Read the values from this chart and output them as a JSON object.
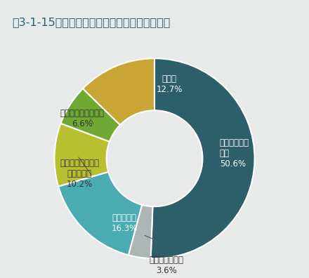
{
  "title": "図3-1-15　環境配慮行動を徹底するための要因",
  "segments": [
    {
      "label_inside": "社内ルールに\nなる\n50.6%",
      "value": 50.6,
      "color": "#2d5f6b",
      "label_outside": null
    },
    {
      "label_inside": null,
      "value": 3.6,
      "color": "#adb5b5",
      "label_outside": "上司からの指示\n3.6%"
    },
    {
      "label_inside": "周囲が実施\n16.3%",
      "value": 16.3,
      "color": "#4aabb0",
      "label_outside": null
    },
    {
      "label_inside": null,
      "value": 10.2,
      "color": "#b8c030",
      "label_outside": "環境問題に関する\n勉強の機会\n10.2%"
    },
    {
      "label_inside": null,
      "value": 6.6,
      "color": "#6fa832",
      "label_outside": "人事考課の評価項目\n6.6%"
    },
    {
      "label_inside": "その他\n12.7%",
      "value": 12.7,
      "color": "#c9a535",
      "label_outside": null
    }
  ],
  "background_color": "#e8eaea",
  "title_fontsize": 11.5,
  "label_fontsize_inside": 8.5,
  "label_fontsize_outside": 8.5,
  "wedge_edge_color": "#ffffff",
  "wedge_edge_width": 1.5
}
